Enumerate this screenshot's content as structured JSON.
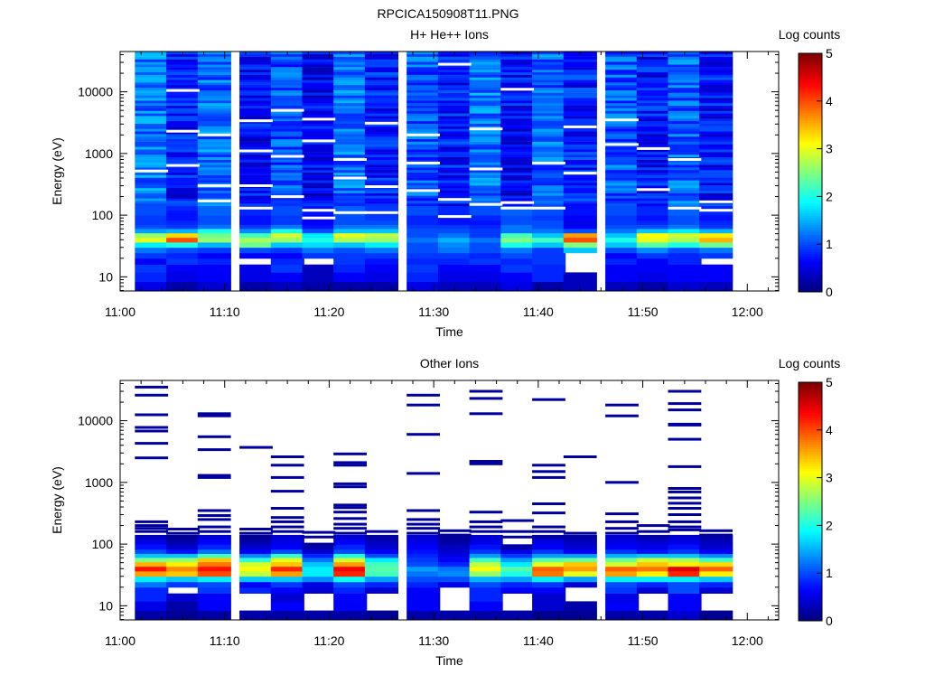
{
  "figure_title": "RPCICA150908T11.PNG",
  "chart_data": [
    {
      "type": "heatmap",
      "title": "H+ He++ Ions",
      "xlabel": "Time",
      "ylabel": "Energy (eV)",
      "y_scale": "log",
      "ylim": [
        5.9,
        45000
      ],
      "xlim": [
        "11:00",
        "12:03"
      ],
      "x_ticks": [
        "11:00",
        "11:10",
        "11:20",
        "11:30",
        "11:40",
        "11:50",
        "12:00"
      ],
      "y_ticks": [
        "10",
        "100",
        "1000",
        "10000"
      ],
      "colorbar": {
        "label": "Log counts",
        "range": [
          0,
          5
        ],
        "ticks": [
          "0",
          "1",
          "2",
          "3",
          "4",
          "5"
        ]
      },
      "x_bins": [
        "11:03",
        "11:06",
        "11:09",
        "11:13",
        "11:16",
        "11:19",
        "11:22",
        "11:25",
        "11:29",
        "11:32",
        "11:35",
        "11:38",
        "11:41",
        "11:44",
        "11:48",
        "11:51",
        "11:54",
        "11:57"
      ],
      "energy_bands_eV": [
        7,
        10,
        14,
        18,
        22,
        27,
        33,
        40,
        47,
        56,
        65,
        75,
        90,
        110,
        130
      ],
      "bands_log_counts": [
        [
          0.5,
          0.2,
          0.4,
          0.2,
          0.3,
          0.2,
          0.2,
          0.2,
          0.5,
          0.3,
          0.3,
          0.5,
          0.2,
          0.3,
          0.3,
          0.2,
          0.4,
          0.3
        ],
        [
          0.8,
          0.5,
          0.6,
          0.5,
          0.6,
          0.3,
          0.6,
          0.5,
          0.8,
          0.5,
          0.5,
          0.6,
          0.8,
          0.3,
          0.6,
          0.5,
          0.6,
          0.6
        ],
        [
          0.9,
          0.6,
          0.6,
          0.5,
          0.9,
          0.3,
          0.8,
          0.6,
          0.9,
          0.6,
          0.6,
          0.9,
          0.8,
          null,
          0.6,
          0.6,
          0.6,
          0.6
        ],
        [
          0.6,
          0.9,
          0.8,
          null,
          0.8,
          null,
          0.9,
          0.7,
          0.8,
          0.8,
          0.9,
          0.8,
          0.9,
          null,
          0.8,
          0.6,
          0.8,
          null
        ],
        [
          0.9,
          0.8,
          0.6,
          0.6,
          0.6,
          0.9,
          0.9,
          0.9,
          0.9,
          0.9,
          0.8,
          1.0,
          0.9,
          null,
          0.6,
          0.9,
          0.8,
          0.9
        ],
        [
          1.2,
          1.0,
          0.9,
          1.0,
          0.9,
          1.2,
          1.0,
          1.2,
          1.0,
          1.2,
          1.0,
          1.2,
          0.9,
          1.6,
          1.0,
          1.3,
          1.0,
          1.2
        ],
        [
          1.8,
          2.0,
          1.5,
          2.4,
          1.6,
          1.7,
          1.6,
          1.8,
          1.0,
          1.3,
          1.0,
          2.0,
          1.6,
          2.5,
          1.6,
          2.3,
          2.0,
          2.4
        ],
        [
          3.0,
          4.0,
          2.6,
          2.7,
          2.6,
          2.0,
          2.7,
          2.6,
          1.2,
          1.5,
          1.2,
          2.5,
          2.2,
          4.0,
          2.0,
          3.0,
          2.7,
          3.5
        ],
        [
          2.6,
          3.3,
          2.4,
          2.2,
          2.9,
          1.8,
          3.0,
          2.8,
          1.0,
          1.2,
          0.9,
          2.2,
          1.6,
          3.6,
          1.6,
          3.1,
          2.9,
          3.2
        ],
        [
          1.4,
          1.5,
          2.0,
          1.3,
          2.0,
          1.0,
          1.6,
          1.6,
          1.0,
          1.0,
          0.9,
          1.2,
          1.2,
          1.0,
          1.2,
          1.6,
          1.8,
          1.5
        ],
        [
          1.0,
          0.9,
          1.2,
          0.9,
          1.2,
          0.7,
          1.2,
          1.2,
          0.9,
          0.9,
          0.8,
          1.2,
          1.0,
          0.6,
          1.0,
          1.0,
          1.2,
          0.9
        ],
        [
          0.9,
          0.8,
          1.0,
          0.7,
          0.9,
          0.6,
          1.0,
          1.0,
          0.8,
          0.7,
          0.7,
          1.0,
          1.0,
          0.5,
          0.9,
          0.8,
          1.0,
          0.8
        ],
        [
          0.9,
          0.7,
          1.0,
          0.7,
          0.9,
          0.6,
          1.0,
          0.9,
          0.8,
          0.7,
          0.8,
          1.0,
          0.9,
          0.6,
          0.9,
          0.7,
          1.0,
          0.7
        ],
        [
          1.0,
          0.7,
          1.1,
          0.8,
          1.0,
          0.7,
          1.1,
          0.9,
          1.0,
          0.8,
          1.0,
          1.1,
          1.0,
          0.7,
          1.0,
          0.8,
          1.1,
          0.8
        ],
        [
          1.0,
          0.8,
          1.1,
          0.8,
          1.0,
          0.7,
          1.1,
          0.9,
          1.0,
          0.8,
          1.0,
          1.1,
          1.0,
          0.7,
          1.0,
          0.8,
          1.1,
          0.8
        ]
      ],
      "upper_range_eV": [
        150,
        45000
      ],
      "column_mean_log_counts": [
        1.2,
        0.7,
        1.15,
        0.65,
        1.0,
        0.6,
        1.15,
        0.75,
        1.05,
        0.7,
        1.2,
        0.6,
        1.1,
        0.75,
        1.05,
        0.7,
        1.1,
        0.7
      ],
      "upper_no_count_levels_eV": [
        [
          520
        ],
        [
          2300,
          10500,
          640
        ],
        [
          170,
          300,
          2000
        ],
        [
          300,
          3400,
          1100,
          130
        ],
        [
          200,
          900,
          5000
        ],
        [
          120,
          3600,
          1600,
          90
        ],
        [
          110,
          400,
          800
        ],
        [
          290,
          3100,
          110
        ],
        [
          250,
          700,
          2000
        ],
        [
          28000,
          180,
          95
        ],
        [
          560,
          150,
          2500
        ],
        [
          11000,
          160,
          130
        ],
        [
          700,
          130
        ],
        [
          480,
          2700
        ],
        [
          1400,
          3500
        ],
        [
          1200,
          260
        ],
        [
          800,
          130
        ],
        [
          165,
          120
        ]
      ]
    },
    {
      "type": "heatmap",
      "title": "Other Ions",
      "xlabel": "Time",
      "ylabel": "Energy (eV)",
      "y_scale": "log",
      "ylim": [
        5.9,
        45000
      ],
      "xlim": [
        "11:00",
        "12:03"
      ],
      "x_ticks": [
        "11:00",
        "11:10",
        "11:20",
        "11:30",
        "11:40",
        "11:50",
        "12:00"
      ],
      "y_ticks": [
        "10",
        "100",
        "1000",
        "10000"
      ],
      "colorbar": {
        "label": "Log counts",
        "range": [
          0,
          5
        ],
        "ticks": [
          "0",
          "1",
          "2",
          "3",
          "4",
          "5"
        ]
      },
      "x_bins": [
        "11:03",
        "11:06",
        "11:09",
        "11:13",
        "11:16",
        "11:19",
        "11:22",
        "11:25",
        "11:29",
        "11:32",
        "11:35",
        "11:38",
        "11:41",
        "11:44",
        "11:48",
        "11:51",
        "11:54",
        "11:57"
      ],
      "energy_bands_eV": [
        7,
        10,
        14,
        18,
        22,
        27,
        33,
        40,
        47,
        56,
        65,
        75,
        90,
        110,
        130
      ],
      "bands_log_counts": [
        [
          0.2,
          0.1,
          0.2,
          0.2,
          0.2,
          0.2,
          0.2,
          0.1,
          0.2,
          0.2,
          0.2,
          0.2,
          0.1,
          0.1,
          0.2,
          0.2,
          0.4,
          0.1
        ],
        [
          0.5,
          0.2,
          0.6,
          null,
          0.6,
          null,
          0.6,
          null,
          0.6,
          null,
          0.6,
          null,
          0.4,
          0.2,
          0.6,
          null,
          0.6,
          null
        ],
        [
          0.8,
          0.4,
          0.6,
          null,
          0.4,
          null,
          0.6,
          null,
          0.6,
          null,
          0.8,
          null,
          0.4,
          null,
          0.5,
          null,
          0.6,
          null
        ],
        [
          0.8,
          null,
          0.9,
          0.8,
          0.6,
          0.4,
          0.8,
          0.4,
          0.6,
          null,
          0.8,
          0.6,
          0.6,
          null,
          0.9,
          0.4,
          1.0,
          0.4
        ],
        [
          1.2,
          0.9,
          1.0,
          0.6,
          0.9,
          0.5,
          1.0,
          0.8,
          0.8,
          0.5,
          1.0,
          0.8,
          0.9,
          0.4,
          1.0,
          0.8,
          1.0,
          0.8
        ],
        [
          1.8,
          1.6,
          1.8,
          1.6,
          1.6,
          1.3,
          1.9,
          1.4,
          1.0,
          1.0,
          1.5,
          1.4,
          1.8,
          1.4,
          1.8,
          1.8,
          1.8,
          1.6
        ],
        [
          3.6,
          3.4,
          4.0,
          2.8,
          3.6,
          1.8,
          4.2,
          2.2,
          1.2,
          1.3,
          2.6,
          2.0,
          3.8,
          3.0,
          3.6,
          3.2,
          4.2,
          3.2
        ],
        [
          4.3,
          3.7,
          4.3,
          3.1,
          4.2,
          1.8,
          4.4,
          2.3,
          1.4,
          1.2,
          3.1,
          2.3,
          3.9,
          3.6,
          3.9,
          3.8,
          4.5,
          3.9
        ],
        [
          3.5,
          3.2,
          3.8,
          2.9,
          3.4,
          1.6,
          3.6,
          2.2,
          1.0,
          0.8,
          2.8,
          1.8,
          3.0,
          3.4,
          2.9,
          3.4,
          3.2,
          3.3
        ],
        [
          2.5,
          2.6,
          3.4,
          2.1,
          3.0,
          1.2,
          2.9,
          1.8,
          0.9,
          0.6,
          2.2,
          1.4,
          2.3,
          2.4,
          2.4,
          2.9,
          2.7,
          2.2
        ],
        [
          1.6,
          1.6,
          2.2,
          1.3,
          2.1,
          0.8,
          2.0,
          1.0,
          0.8,
          0.5,
          1.4,
          0.9,
          1.4,
          1.4,
          1.5,
          1.6,
          1.6,
          1.3
        ],
        [
          1.0,
          0.7,
          1.2,
          0.6,
          1.0,
          0.4,
          1.0,
          0.6,
          0.7,
          0.4,
          0.9,
          0.5,
          0.9,
          0.6,
          0.9,
          0.7,
          0.9,
          0.6
        ],
        [
          0.7,
          0.4,
          0.8,
          0.4,
          0.6,
          0.2,
          0.8,
          0.4,
          0.6,
          0.3,
          0.7,
          0.2,
          0.6,
          0.4,
          0.6,
          0.5,
          0.7,
          0.4
        ],
        [
          0.5,
          0.2,
          0.6,
          0.2,
          0.5,
          null,
          0.6,
          0.3,
          0.5,
          0.2,
          0.5,
          null,
          0.5,
          0.3,
          0.5,
          0.4,
          0.5,
          0.3
        ],
        [
          0.3,
          0.1,
          0.4,
          0.1,
          0.4,
          null,
          0.4,
          0.2,
          0.4,
          0.1,
          0.4,
          null,
          0.3,
          0.2,
          0.4,
          0.3,
          0.4,
          0.2
        ]
      ],
      "sparse_high_energy_counts": [
        {
          "x": "11:03",
          "energies_eV": [
            160,
            180,
            200,
            230,
            2500,
            4300,
            6800,
            7800,
            12500,
            26000,
            35000
          ]
        },
        {
          "x": "11:06",
          "energies_eV": [
            150,
            175
          ]
        },
        {
          "x": "11:09",
          "energies_eV": [
            160,
            190,
            250,
            290,
            350,
            1200,
            1300,
            3400,
            5500,
            12000,
            13000
          ]
        },
        {
          "x": "11:13",
          "energies_eV": [
            150,
            175,
            3700
          ]
        },
        {
          "x": "11:16",
          "energies_eV": [
            160,
            190,
            230,
            270,
            380,
            720,
            1200,
            1900,
            2600
          ]
        },
        {
          "x": "11:19",
          "energies_eV": [
            100,
            130,
            155
          ]
        },
        {
          "x": "11:22",
          "energies_eV": [
            150,
            180,
            210,
            260,
            330,
            390,
            430,
            850,
            950,
            1900,
            2100,
            2900
          ]
        },
        {
          "x": "11:25",
          "energies_eV": [
            130,
            160
          ]
        },
        {
          "x": "11:29",
          "energies_eV": [
            150,
            180,
            210,
            250,
            350,
            1400,
            6000,
            18000,
            26000
          ]
        },
        {
          "x": "11:32",
          "energies_eV": [
            110,
            140,
            165
          ]
        },
        {
          "x": "11:35",
          "energies_eV": [
            160,
            190,
            230,
            330,
            2000,
            2200,
            13000,
            23000,
            30000
          ]
        },
        {
          "x": "11:38",
          "energies_eV": [
            130,
            160,
            240
          ]
        },
        {
          "x": "11:41",
          "energies_eV": [
            130,
            160,
            190,
            320,
            450,
            1200,
            1500,
            1900,
            22000
          ]
        },
        {
          "x": "11:44",
          "energies_eV": [
            130,
            150,
            2600
          ]
        },
        {
          "x": "11:48",
          "energies_eV": [
            150,
            180,
            230,
            310,
            1000,
            12000,
            18000
          ]
        },
        {
          "x": "11:51",
          "energies_eV": [
            130,
            160,
            200
          ]
        },
        {
          "x": "11:54",
          "energies_eV": [
            170,
            190,
            230,
            300,
            380,
            460,
            560,
            700,
            800,
            1800,
            5000,
            8500,
            8800,
            15000,
            19000,
            30000
          ]
        },
        {
          "x": "11:57",
          "energies_eV": [
            140,
            165
          ]
        }
      ]
    }
  ]
}
